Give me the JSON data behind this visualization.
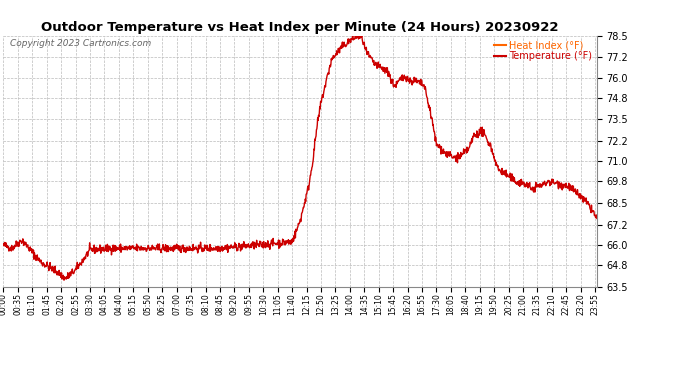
{
  "title": "Outdoor Temperature vs Heat Index per Minute (24 Hours) 20230922",
  "copyright_text": "Copyright 2023 Cartronics.com",
  "legend_heat_index": "Heat Index (°F)",
  "legend_temperature": "Temperature (°F)",
  "legend_heat_index_color": "#ff6600",
  "legend_temperature_color": "#cc0000",
  "background_color": "#ffffff",
  "grid_color": "#bbbbbb",
  "title_color": "#000000",
  "copyright_color": "#555555",
  "ylim_min": 63.5,
  "ylim_max": 78.5,
  "yticks": [
    63.5,
    64.8,
    66.0,
    67.2,
    68.5,
    69.8,
    71.0,
    72.2,
    73.5,
    74.8,
    76.0,
    77.2,
    78.5
  ],
  "line_color": "#cc0000",
  "line_width": 1.0,
  "keypoints_min": [
    0,
    20,
    45,
    90,
    130,
    150,
    175,
    210,
    260,
    300,
    360,
    420,
    480,
    510,
    570,
    620,
    660,
    700,
    710,
    720,
    730,
    740,
    750,
    760,
    770,
    785,
    795,
    800,
    820,
    840,
    860,
    870,
    880,
    900,
    920,
    935,
    940,
    950,
    960,
    970,
    975,
    985,
    1000,
    1015,
    1020,
    1035,
    1050,
    1060,
    1070,
    1085,
    1090,
    1110,
    1130,
    1140,
    1160,
    1180,
    1200,
    1220,
    1240,
    1260,
    1275,
    1280,
    1295,
    1310,
    1320,
    1340,
    1355,
    1370,
    1385,
    1395,
    1415,
    1430,
    1439
  ],
  "keypoints_val": [
    66.0,
    65.8,
    66.3,
    65.0,
    64.4,
    64.0,
    64.5,
    65.7,
    65.8,
    65.8,
    65.8,
    65.8,
    65.8,
    65.8,
    65.9,
    66.0,
    66.1,
    66.2,
    66.8,
    67.5,
    68.5,
    69.5,
    71.0,
    73.0,
    74.5,
    76.0,
    77.0,
    77.2,
    77.8,
    78.2,
    78.5,
    78.3,
    77.5,
    76.8,
    76.5,
    76.3,
    75.8,
    75.5,
    75.8,
    76.0,
    76.1,
    75.8,
    75.8,
    75.6,
    75.5,
    74.0,
    72.0,
    71.8,
    71.5,
    71.3,
    71.2,
    71.3,
    71.8,
    72.5,
    72.8,
    72.0,
    70.5,
    70.2,
    69.8,
    69.7,
    69.5,
    69.3,
    69.5,
    69.6,
    69.8,
    69.7,
    69.6,
    69.5,
    69.2,
    69.0,
    68.5,
    68.0,
    67.5
  ]
}
